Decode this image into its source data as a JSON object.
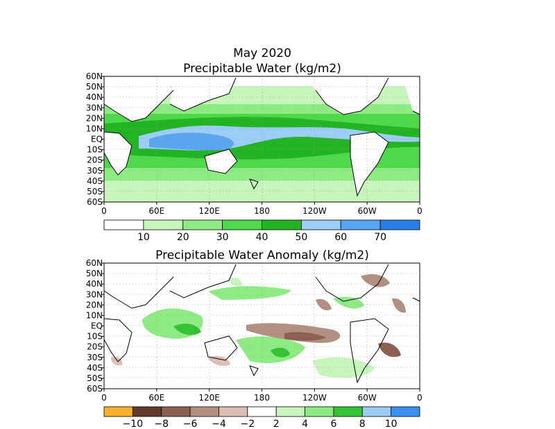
{
  "figure": {
    "title": "May 2020",
    "top_panel_title": "Precipitable Water (kg/m2)",
    "bottom_panel_title": "Precipitable Water Anomaly (kg/m2)"
  },
  "chart_data": [
    {
      "type": "heatmap",
      "title": "Precipitable Water (kg/m2)",
      "lat_labels": [
        "60N",
        "50N",
        "40N",
        "30N",
        "20N",
        "10N",
        "EQ",
        "10S",
        "20S",
        "30S",
        "40S",
        "50S",
        "60S"
      ],
      "lon_labels": [
        "0",
        "60E",
        "120E",
        "180",
        "120W",
        "60W",
        "0"
      ],
      "xlim": [
        0,
        360
      ],
      "ylim": [
        -60,
        60
      ],
      "colorbar": {
        "labels": [
          "10",
          "20",
          "30",
          "40",
          "50",
          "60",
          "70"
        ],
        "bins": [
          "<10",
          "10-20",
          "20-30",
          "30-40",
          "40-50",
          "50-60",
          "60-70",
          ">70"
        ],
        "colors": [
          "#ffffff",
          "#c8f5bc",
          "#8eeb84",
          "#4ed94a",
          "#23b423",
          "#9bcdf5",
          "#5aa5ef",
          "#2b7de7"
        ]
      }
    },
    {
      "type": "heatmap",
      "title": "Precipitable Water Anomaly (kg/m2)",
      "lat_labels": [
        "60N",
        "50N",
        "40N",
        "30N",
        "20N",
        "10N",
        "EQ",
        "10S",
        "20S",
        "30S",
        "40S",
        "50S",
        "60S"
      ],
      "lon_labels": [
        "0",
        "60E",
        "120E",
        "180",
        "120W",
        "60W",
        "0"
      ],
      "xlim": [
        0,
        360
      ],
      "ylim": [
        -60,
        60
      ],
      "colorbar": {
        "labels": [
          "−10",
          "−8",
          "−6",
          "−4",
          "−2",
          "2",
          "4",
          "6",
          "8",
          "10"
        ],
        "bins": [
          "<-10",
          "-10 to -8",
          "-8 to -6",
          "-6 to -4",
          "-4 to -2",
          "-2 to 2",
          "2-4",
          "4-6",
          "6-8",
          "8-10",
          ">10"
        ],
        "colors": [
          "#f9b02e",
          "#603a2b",
          "#8c6051",
          "#b38f82",
          "#dbbdb3",
          "#ffffff",
          "#c8f5bc",
          "#8eeb84",
          "#34c433",
          "#9bcdf5",
          "#3a8ff0"
        ]
      }
    }
  ]
}
